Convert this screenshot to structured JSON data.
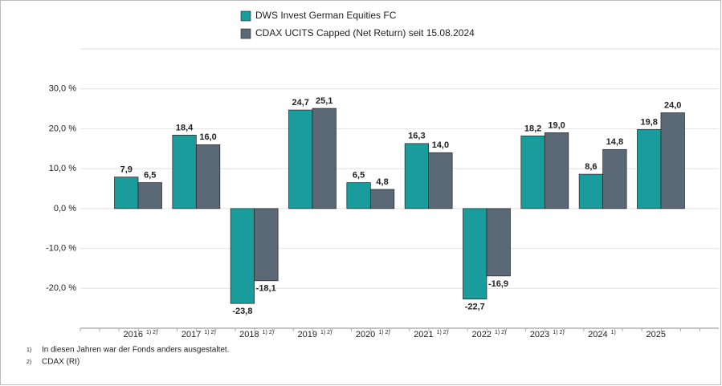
{
  "chart_data": {
    "type": "bar",
    "categories": [
      "2016",
      "2017",
      "2018",
      "2019",
      "2020",
      "2021",
      "2022",
      "2023",
      "2024",
      "2025"
    ],
    "category_notes": [
      "1) 2)",
      "1) 2)",
      "1) 2)",
      "1) 2)",
      "1) 2)",
      "1) 2)",
      "1) 2)",
      "1) 2)",
      "1)",
      null
    ],
    "series": [
      {
        "name": "DWS Invest German Equities FC",
        "color": "#1a9b9c",
        "values": [
          7.9,
          18.4,
          -23.8,
          24.7,
          6.5,
          16.3,
          -22.7,
          18.2,
          8.6,
          19.8
        ],
        "value_labels": [
          "7,9",
          "18,4",
          "-23,8",
          "24,7",
          "6,5",
          "16,3",
          "-22,7",
          "18,2",
          "8,6",
          "19,8"
        ]
      },
      {
        "name": "CDAX UCITS Capped (Net Return) seit 15.08.2024",
        "color": "#5a6975",
        "values": [
          6.5,
          16.0,
          -18.1,
          25.1,
          4.8,
          14.0,
          -16.9,
          19.0,
          14.8,
          24.0
        ],
        "value_labels": [
          "6,5",
          "16,0",
          "-18,1",
          "25,1",
          "4,8",
          "14,0",
          "-16,9",
          "19,0",
          "14,8",
          "24,0"
        ]
      }
    ],
    "ylim": [
      -30,
      40
    ],
    "yticks": [
      {
        "value": 30,
        "label": "30,0 %"
      },
      {
        "value": 20,
        "label": "20,0 %"
      },
      {
        "value": 10,
        "label": "10,0 %"
      },
      {
        "value": 0,
        "label": "0,0 %"
      },
      {
        "value": -10,
        "label": "-10,0 %"
      },
      {
        "value": -20,
        "label": "-20,0 %"
      }
    ],
    "grid": true,
    "footnotes": [
      {
        "marker": "1)",
        "text": "In diesen Jahren war der Fonds anders ausgestaltet."
      },
      {
        "marker": "2)",
        "text": "CDAX (RI)"
      }
    ]
  }
}
